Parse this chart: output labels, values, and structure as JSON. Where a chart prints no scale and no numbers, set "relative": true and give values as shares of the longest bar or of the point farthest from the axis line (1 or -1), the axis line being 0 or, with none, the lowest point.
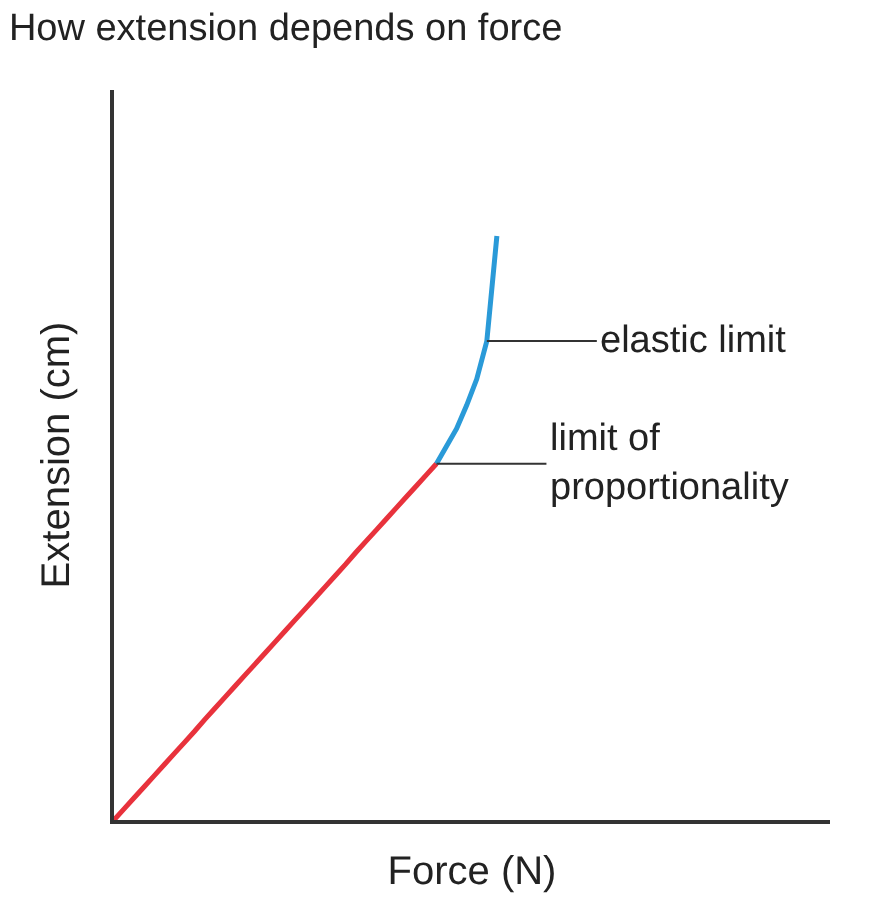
{
  "chart_data": {
    "type": "line",
    "title": "How extension depends on force",
    "xlabel": "Force (N)",
    "ylabel": "Extension (cm)",
    "relative": true,
    "marker": "none",
    "line_style": "solid",
    "categories": [
      null,
      null,
      null,
      null,
      null,
      null,
      null,
      null,
      null,
      null,
      null,
      null,
      null,
      null,
      null,
      null,
      null,
      null,
      null,
      null,
      null,
      null,
      null,
      null,
      null,
      null,
      null,
      null,
      null,
      null,
      null,
      null,
      null,
      null,
      null,
      null,
      null,
      null,
      null
    ],
    "series": [
      {
        "color": "#e8323c",
        "values": [
          0,
          0.019,
          0.038,
          0.057,
          0.076,
          0.095,
          0.114,
          0.133,
          0.152,
          0.172,
          0.191,
          0.21,
          0.229,
          0.248,
          0.267,
          0.286,
          0.305,
          0.324,
          0.343,
          0.362,
          0.381,
          0.4,
          0.419,
          0.438,
          0.458,
          0.477,
          0.496,
          0.515,
          0.534,
          0.553,
          0.572,
          0.591,
          0.61,
          null,
          null,
          null,
          null,
          null,
          null
        ]
      },
      {
        "color": "#2a9ad8",
        "values": [
          null,
          null,
          null,
          null,
          null,
          null,
          null,
          null,
          null,
          null,
          null,
          null,
          null,
          null,
          null,
          null,
          null,
          null,
          null,
          null,
          null,
          null,
          null,
          null,
          null,
          null,
          null,
          null,
          null,
          null,
          null,
          null,
          0.61,
          0.64,
          0.67,
          0.71,
          0.755,
          0.82,
          1
        ]
      }
    ],
    "annotations": [
      "elastic limit",
      "limit of\nproportionality"
    ]
  }
}
